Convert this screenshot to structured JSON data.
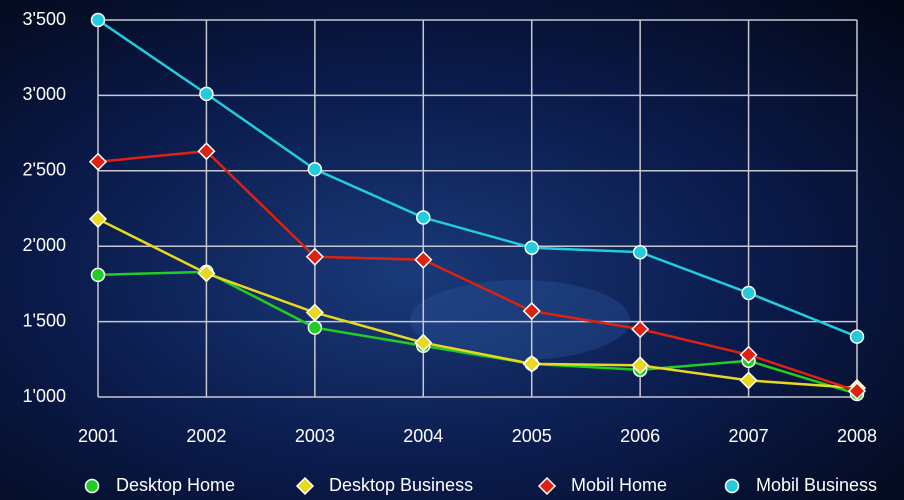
{
  "chart_data": {
    "type": "line",
    "categories": [
      "2001",
      "2002",
      "2003",
      "2004",
      "2005",
      "2006",
      "2007",
      "2008"
    ],
    "series": [
      {
        "name": "Desktop Home",
        "color": "#22cc22",
        "marker": "circle",
        "values": [
          1810,
          1830,
          1460,
          1340,
          1220,
          1180,
          1240,
          1020
        ]
      },
      {
        "name": "Desktop Business",
        "color": "#e8d820",
        "marker": "diamond",
        "values": [
          2180,
          1820,
          1560,
          1360,
          1220,
          1210,
          1110,
          1060
        ]
      },
      {
        "name": "Mobil Home",
        "color": "#dd2211",
        "marker": "diamond",
        "values": [
          2560,
          2630,
          1930,
          1910,
          1570,
          1450,
          1280,
          1040
        ]
      },
      {
        "name": "Mobil Business",
        "color": "#22ccdd",
        "marker": "circle",
        "values": [
          3500,
          3010,
          2510,
          2190,
          1990,
          1960,
          1690,
          1400
        ]
      }
    ],
    "ylim": [
      1000,
      3500
    ],
    "yticks": [
      {
        "value": 1000,
        "label": "1'000"
      },
      {
        "value": 1500,
        "label": "1'500"
      },
      {
        "value": 2000,
        "label": "2'000"
      },
      {
        "value": 2500,
        "label": "2'500"
      },
      {
        "value": 3000,
        "label": "3'000"
      },
      {
        "value": 3500,
        "label": "3'500"
      }
    ],
    "grid": true,
    "legend": "bottom"
  }
}
